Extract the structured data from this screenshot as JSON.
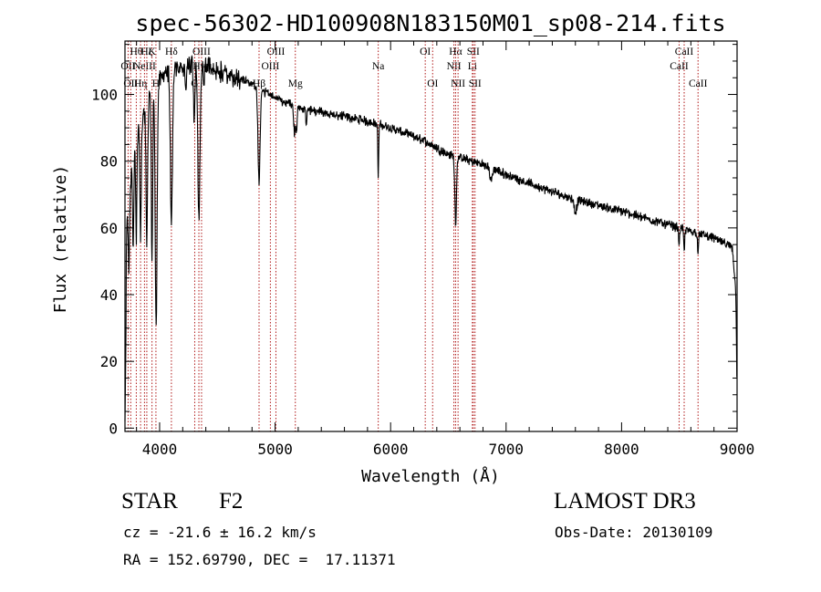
{
  "chart_data": {
    "type": "line",
    "title": "spec-56302-HD100908N183150M01_sp08-214.fits",
    "xlabel": "Wavelength (Å)",
    "ylabel": "Flux (relative)",
    "xlim": [
      3700,
      9000
    ],
    "ylim": [
      -1,
      116
    ],
    "xticks": [
      4000,
      5000,
      6000,
      7000,
      8000,
      9000
    ],
    "xtick_labels": [
      "4000",
      "5000",
      "6000",
      "7000",
      "8000",
      "9000"
    ],
    "yticks": [
      0,
      20,
      40,
      60,
      80,
      100
    ],
    "ytick_labels": [
      "0",
      "20",
      "40",
      "60",
      "80",
      "100"
    ],
    "x_minor_step": 200,
    "y_minor_step": 5,
    "grid": false,
    "line_color": "#000000",
    "marker_color": "#b01818",
    "continuum": [
      [
        3700,
        55
      ],
      [
        3760,
        78
      ],
      [
        3820,
        90
      ],
      [
        3880,
        96
      ],
      [
        3950,
        102
      ],
      [
        4050,
        106
      ],
      [
        4150,
        108
      ],
      [
        4300,
        109
      ],
      [
        4450,
        108
      ],
      [
        4600,
        106
      ],
      [
        4800,
        103
      ],
      [
        5000,
        99
      ],
      [
        5200,
        96
      ],
      [
        5500,
        94
      ],
      [
        5800,
        92
      ],
      [
        6000,
        90
      ],
      [
        6300,
        86
      ],
      [
        6500,
        82
      ],
      [
        6800,
        79
      ],
      [
        7000,
        76
      ],
      [
        7300,
        72
      ],
      [
        7600,
        68.5
      ],
      [
        8000,
        65
      ],
      [
        8300,
        62
      ],
      [
        8600,
        59
      ],
      [
        8800,
        57
      ],
      [
        8960,
        54
      ],
      [
        8990,
        40
      ],
      [
        9000,
        10
      ]
    ],
    "absorption": [
      {
        "w": 3705,
        "d": 40,
        "s": 4
      },
      {
        "w": 3735,
        "d": 20,
        "s": 5
      },
      {
        "w": 3771,
        "d": 25,
        "s": 5
      },
      {
        "w": 3798,
        "d": 28,
        "s": 5
      },
      {
        "w": 3835,
        "d": 33,
        "s": 6
      },
      {
        "w": 3889,
        "d": 40,
        "s": 7
      },
      {
        "w": 3934,
        "d": 50,
        "s": 6
      },
      {
        "w": 3970,
        "d": 74,
        "s": 8
      },
      {
        "w": 4102,
        "d": 45,
        "s": 9
      },
      {
        "w": 4226,
        "d": 10,
        "s": 4
      },
      {
        "w": 4300,
        "d": 18,
        "s": 6
      },
      {
        "w": 4340,
        "d": 46,
        "s": 9
      },
      {
        "w": 4383,
        "d": 8,
        "s": 4
      },
      {
        "w": 4861,
        "d": 28,
        "s": 9
      },
      {
        "w": 5167,
        "d": 8,
        "s": 6
      },
      {
        "w": 5184,
        "d": 8,
        "s": 6
      },
      {
        "w": 5270,
        "d": 4,
        "s": 5
      },
      {
        "w": 5893,
        "d": 16,
        "s": 4
      },
      {
        "w": 6563,
        "d": 20,
        "s": 7
      },
      {
        "w": 6870,
        "d": 4,
        "s": 10
      },
      {
        "w": 7600,
        "d": 4,
        "s": 10
      },
      {
        "w": 8498,
        "d": 5,
        "s": 4
      },
      {
        "w": 8542,
        "d": 7,
        "s": 4
      },
      {
        "w": 8662,
        "d": 6,
        "s": 4
      }
    ],
    "noise_amplitude": 1.1,
    "line_markers": [
      {
        "w": 3727,
        "label": "OII",
        "row": 2
      },
      {
        "w": 3750,
        "label": "OII",
        "row": 3
      },
      {
        "w": 3798,
        "label": "Hθ",
        "row": 1
      },
      {
        "w": 3835,
        "label": "Hη",
        "row": 3
      },
      {
        "w": 3869,
        "label": "NeIII",
        "row": 2
      },
      {
        "w": 3889,
        "label": "Hζ",
        "row": 1
      },
      {
        "w": 3934,
        "label": "K",
        "row": 1
      },
      {
        "w": 3968,
        "label": "H",
        "row": 3
      },
      {
        "w": 4102,
        "label": "Hδ",
        "row": 1
      },
      {
        "w": 4304,
        "label": "G",
        "row": 3
      },
      {
        "w": 4340,
        "label": "Hγ",
        "row": 2
      },
      {
        "w": 4363,
        "label": "OIII",
        "row": 1
      },
      {
        "w": 4861,
        "label": "Hβ",
        "row": 3
      },
      {
        "w": 4959,
        "label": "OIII",
        "row": 2
      },
      {
        "w": 5007,
        "label": "OIII",
        "row": 1
      },
      {
        "w": 5175,
        "label": "Mg",
        "row": 3
      },
      {
        "w": 5893,
        "label": "Na",
        "row": 2
      },
      {
        "w": 6300,
        "label": "OI",
        "row": 1
      },
      {
        "w": 6364,
        "label": "OI",
        "row": 3
      },
      {
        "w": 6548,
        "label": "NII",
        "row": 2
      },
      {
        "w": 6563,
        "label": "Hα",
        "row": 1
      },
      {
        "w": 6584,
        "label": "NII",
        "row": 3
      },
      {
        "w": 6708,
        "label": "Li",
        "row": 2
      },
      {
        "w": 6716,
        "label": "SII",
        "row": 1
      },
      {
        "w": 6731,
        "label": "SII",
        "row": 3
      },
      {
        "w": 8498,
        "label": "CaII",
        "row": 2
      },
      {
        "w": 8542,
        "label": "CaII",
        "row": 1
      },
      {
        "w": 8662,
        "label": "CaII",
        "row": 3
      }
    ]
  },
  "info": {
    "object_class": "STAR",
    "subclass": "F2",
    "survey": "LAMOST DR3",
    "redshift_line": "cz = -21.6 ± 16.2 km/s",
    "obs_date": "Obs-Date: 20130109",
    "coords": "RA = 152.69790, DEC =  17.11371"
  }
}
